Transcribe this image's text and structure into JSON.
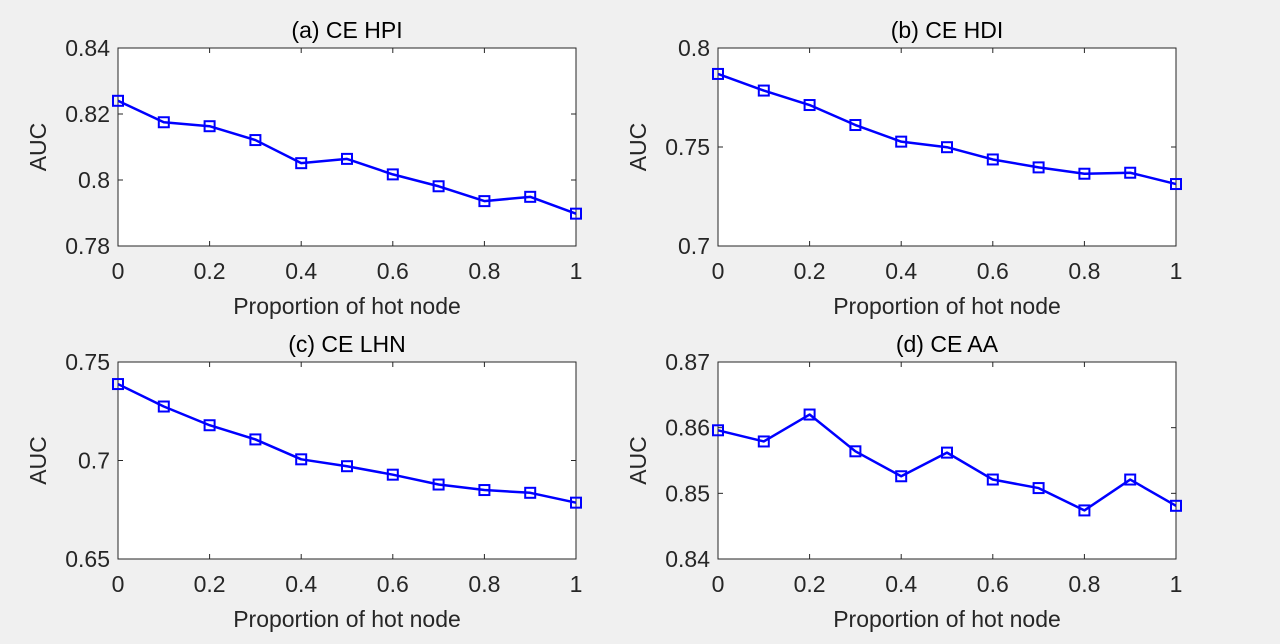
{
  "colors": {
    "background": "#f0f0f0",
    "series": "#0000ff",
    "axis": "#262626"
  },
  "chart_data": [
    {
      "type": "line",
      "title": "(a) CE HPI",
      "xlabel": "Proportion of hot node",
      "ylabel": "AUC",
      "xlim": [
        0,
        1
      ],
      "ylim": [
        0.78,
        0.84
      ],
      "xticks": [
        0,
        0.2,
        0.4,
        0.6,
        0.8,
        1
      ],
      "xtick_labels": [
        "0",
        "0.2",
        "0.4",
        "0.6",
        "0.8",
        "1"
      ],
      "yticks": [
        0.78,
        0.8,
        0.82,
        0.84
      ],
      "ytick_labels": [
        "0.78",
        "0.8",
        "0.82",
        "0.84"
      ],
      "grid": false,
      "marker": "square",
      "series": [
        {
          "x": [
            0,
            0.1,
            0.2,
            0.3,
            0.4,
            0.5,
            0.6,
            0.7,
            0.8,
            0.9,
            1
          ],
          "values": [
            0.824,
            0.8175,
            0.8163,
            0.8121,
            0.8051,
            0.8064,
            0.8017,
            0.7981,
            0.7936,
            0.7949,
            0.7898
          ]
        }
      ]
    },
    {
      "type": "line",
      "title": "(b) CE HDI",
      "xlabel": "Proportion of hot node",
      "ylabel": "AUC",
      "xlim": [
        0,
        1
      ],
      "ylim": [
        0.7,
        0.8
      ],
      "xticks": [
        0,
        0.2,
        0.4,
        0.6,
        0.8,
        1
      ],
      "xtick_labels": [
        "0",
        "0.2",
        "0.4",
        "0.6",
        "0.8",
        "1"
      ],
      "yticks": [
        0.7,
        0.75,
        0.8
      ],
      "ytick_labels": [
        "0.7",
        "0.75",
        "0.8"
      ],
      "grid": false,
      "marker": "square",
      "series": [
        {
          "x": [
            0,
            0.1,
            0.2,
            0.3,
            0.4,
            0.5,
            0.6,
            0.7,
            0.8,
            0.9,
            1
          ],
          "values": [
            0.7869,
            0.7785,
            0.7712,
            0.7611,
            0.7527,
            0.7499,
            0.7437,
            0.7397,
            0.7365,
            0.737,
            0.7313
          ]
        }
      ]
    },
    {
      "type": "line",
      "title": "(c) CE LHN",
      "xlabel": "Proportion of hot node",
      "ylabel": "AUC",
      "xlim": [
        0,
        1
      ],
      "ylim": [
        0.65,
        0.75
      ],
      "xticks": [
        0,
        0.2,
        0.4,
        0.6,
        0.8,
        1
      ],
      "xtick_labels": [
        "0",
        "0.2",
        "0.4",
        "0.6",
        "0.8",
        "1"
      ],
      "yticks": [
        0.65,
        0.7,
        0.75
      ],
      "ytick_labels": [
        "0.65",
        "0.7",
        "0.75"
      ],
      "grid": false,
      "marker": "square",
      "series": [
        {
          "x": [
            0,
            0.1,
            0.2,
            0.3,
            0.4,
            0.5,
            0.6,
            0.7,
            0.8,
            0.9,
            1
          ],
          "values": [
            0.7388,
            0.7274,
            0.7179,
            0.7107,
            0.7006,
            0.6971,
            0.6928,
            0.6878,
            0.685,
            0.6836,
            0.6786
          ]
        }
      ]
    },
    {
      "type": "line",
      "title": "(d) CE AA",
      "xlabel": "Proportion of hot node",
      "ylabel": "AUC",
      "xlim": [
        0,
        1
      ],
      "ylim": [
        0.84,
        0.87
      ],
      "xticks": [
        0,
        0.2,
        0.4,
        0.6,
        0.8,
        1
      ],
      "xtick_labels": [
        "0",
        "0.2",
        "0.4",
        "0.6",
        "0.8",
        "1"
      ],
      "yticks": [
        0.84,
        0.85,
        0.86,
        0.87
      ],
      "ytick_labels": [
        "0.84",
        "0.85",
        "0.86",
        "0.87"
      ],
      "grid": false,
      "marker": "square",
      "series": [
        {
          "x": [
            0,
            0.1,
            0.2,
            0.3,
            0.4,
            0.5,
            0.6,
            0.7,
            0.8,
            0.9,
            1
          ],
          "values": [
            0.8596,
            0.8579,
            0.862,
            0.8564,
            0.8526,
            0.8562,
            0.8521,
            0.8508,
            0.8474,
            0.8521,
            0.8481
          ]
        }
      ]
    }
  ]
}
